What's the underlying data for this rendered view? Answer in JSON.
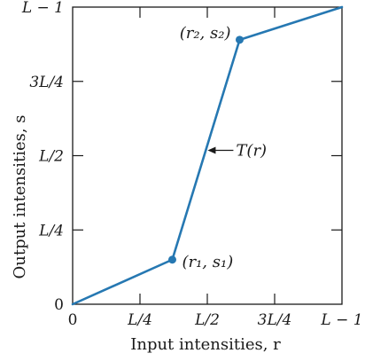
{
  "colors": {
    "curve": "#2678b2",
    "frame": "#1a1a1a"
  },
  "chart_data": {
    "type": "line",
    "xlabel": "Input intensities, r",
    "ylabel": "Output intensities, s",
    "xlim": [
      0,
      1
    ],
    "ylim": [
      0,
      1
    ],
    "grid": false,
    "x_ticks": [
      {
        "value": 0,
        "label": "0"
      },
      {
        "value": 0.25,
        "label": "L/4"
      },
      {
        "value": 0.5,
        "label": "L/2"
      },
      {
        "value": 0.75,
        "label": "3L/4"
      },
      {
        "value": 1,
        "label": "L − 1"
      }
    ],
    "y_ticks": [
      {
        "value": 0,
        "label": "0"
      },
      {
        "value": 0.25,
        "label": "L/4"
      },
      {
        "value": 0.5,
        "label": "L/2"
      },
      {
        "value": 0.75,
        "label": "3L/4"
      },
      {
        "value": 1,
        "label": "L − 1"
      }
    ],
    "series": [
      {
        "x": [
          0,
          0.37,
          0.62,
          1
        ],
        "y": [
          0,
          0.15,
          0.89,
          1
        ]
      }
    ],
    "control_points": [
      {
        "x": 0.37,
        "y": 0.15,
        "label": "(r₁, s₁)"
      },
      {
        "x": 0.62,
        "y": 0.89,
        "label": "(r₂, s₂)"
      }
    ],
    "annotations": [
      {
        "text": "T(r)",
        "x": 0.5,
        "y": 0.5,
        "arrow": true
      }
    ]
  }
}
